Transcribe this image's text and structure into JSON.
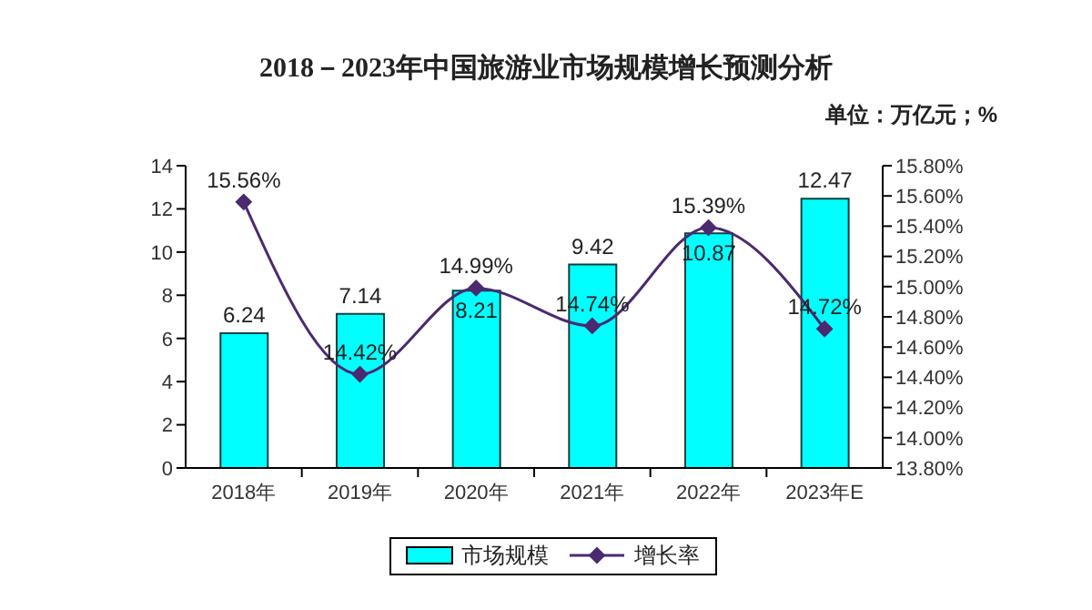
{
  "chart_data": {
    "type": "bar",
    "title": "2018－2023年中国旅游业市场规模增长预测分析",
    "annotations": [
      "单位：万亿元；%"
    ],
    "categories": [
      "2018年",
      "2019年",
      "2020年",
      "2021年",
      "2022年",
      "2023年E"
    ],
    "series": [
      {
        "name": "市场规模",
        "color": "#00ffff",
        "values": [
          6.24,
          7.14,
          8.21,
          9.42,
          10.87,
          12.47
        ],
        "value_labels": [
          "6.24",
          "7.14",
          "8.21",
          "9.42",
          "10.87",
          "12.47"
        ]
      },
      {
        "name": "增长率",
        "type": "line",
        "axis": "y2",
        "color": "#4b2a70",
        "values": [
          15.56,
          14.42,
          14.99,
          14.74,
          15.39,
          14.72
        ],
        "value_labels": [
          "15.56%",
          "14.42%",
          "14.99%",
          "14.74%",
          "15.39%",
          "14.72%"
        ]
      }
    ],
    "ylim": [
      0,
      14
    ],
    "yticks": [
      0,
      2,
      4,
      6,
      8,
      10,
      12,
      14
    ],
    "y2lim": [
      13.8,
      15.8
    ],
    "y2ticks": [
      {
        "value": 13.8,
        "label": "13.80%"
      },
      {
        "value": 14.0,
        "label": "14.00%"
      },
      {
        "value": 14.2,
        "label": "14.20%"
      },
      {
        "value": 14.4,
        "label": "14.40%"
      },
      {
        "value": 14.6,
        "label": "14.60%"
      },
      {
        "value": 14.8,
        "label": "14.80%"
      },
      {
        "value": 15.0,
        "label": "15.00%"
      },
      {
        "value": 15.2,
        "label": "15.20%"
      },
      {
        "value": 15.4,
        "label": "15.40%"
      },
      {
        "value": 15.6,
        "label": "15.60%"
      },
      {
        "value": 15.8,
        "label": "15.80%"
      }
    ],
    "marker": "diamond",
    "legend": "bottom",
    "grid": false
  }
}
